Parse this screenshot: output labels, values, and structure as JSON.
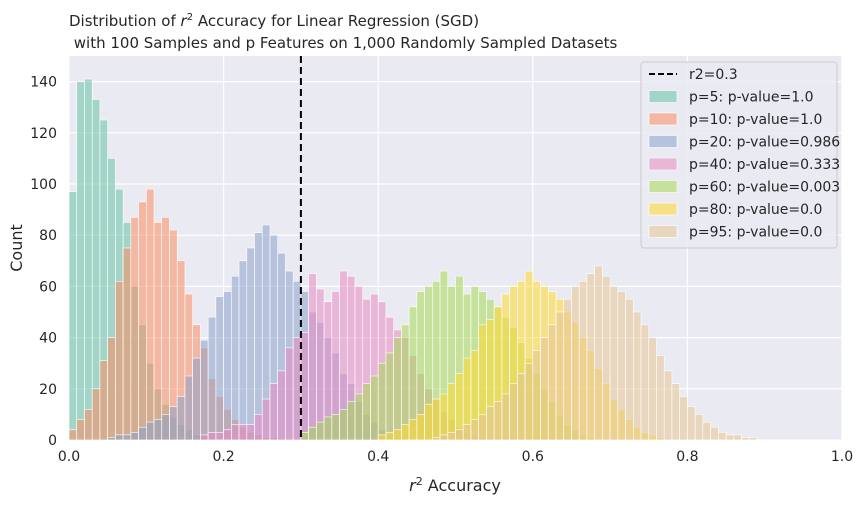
{
  "chart_data": {
    "type": "bar",
    "title_line1_prefix": "Distribution of ",
    "title_line1_suffix": " Accuracy for Linear Regression (SGD)",
    "title_line2": " with 100 Samples and p Features on 1,000 Randomly Sampled Datasets",
    "xlabel_suffix": " Accuracy",
    "ylabel": "Count",
    "xlim": [
      0,
      1.0
    ],
    "ylim": [
      0,
      150
    ],
    "xticks": [
      "0.0",
      "0.2",
      "0.4",
      "0.6",
      "0.8",
      "1.0"
    ],
    "xtick_values": [
      0,
      0.2,
      0.4,
      0.6,
      0.8,
      1.0
    ],
    "yticks": [
      "0",
      "20",
      "40",
      "60",
      "80",
      "100",
      "120",
      "140"
    ],
    "ytick_values": [
      0,
      20,
      40,
      60,
      80,
      100,
      120,
      140
    ],
    "grid": true,
    "legend_position": "top-right",
    "bin_width": 0.01,
    "vline": {
      "x": 0.3,
      "label": "r2=0.3",
      "color": "#000000"
    },
    "series": [
      {
        "name": "p=5: p-value=1.0",
        "color": "#66c2a5",
        "start": 0.0,
        "values": [
          97,
          140,
          141,
          133,
          125,
          110,
          98,
          85,
          60,
          45,
          30,
          20,
          14,
          9,
          6,
          4,
          2,
          1,
          1
        ]
      },
      {
        "name": "p=10: p-value=1.0",
        "color": "#fc8d62",
        "start": 0.0,
        "values": [
          4,
          8,
          12,
          20,
          31,
          40,
          62,
          75,
          87,
          93,
          98,
          85,
          87,
          82,
          70,
          57,
          45,
          36,
          24,
          17,
          12,
          8,
          5,
          3,
          2,
          1,
          1
        ]
      },
      {
        "name": "p=20: p-value=0.986",
        "color": "#8da0cb",
        "start": 0.05,
        "values": [
          1,
          2,
          2,
          3,
          5,
          7,
          8,
          10,
          13,
          17,
          25,
          32,
          39,
          48,
          56,
          58,
          64,
          70,
          75,
          81,
          84,
          80,
          73,
          66,
          62,
          58,
          50,
          46,
          40,
          34,
          26,
          22,
          15,
          10,
          7,
          4,
          2,
          1
        ]
      },
      {
        "name": "p=40: p-value=0.333",
        "color": "#e78ac3",
        "start": 0.17,
        "values": [
          2,
          3,
          3,
          4,
          6,
          6,
          6,
          10,
          16,
          22,
          27,
          36,
          40,
          42,
          65,
          59,
          54,
          58,
          66,
          64,
          60,
          55,
          57,
          54,
          48,
          43,
          40,
          33,
          26,
          20,
          16,
          11,
          8,
          5,
          3,
          2,
          1
        ]
      },
      {
        "name": "p=60: p-value=0.003",
        "color": "#a6d854",
        "start": 0.3,
        "values": [
          3,
          5,
          7,
          9,
          10,
          12,
          15,
          18,
          22,
          25,
          30,
          34,
          40,
          45,
          52,
          58,
          60,
          62,
          66,
          60,
          64,
          57,
          60,
          58,
          55,
          52,
          48,
          44,
          38,
          32,
          26,
          20,
          15,
          10,
          6,
          4,
          2,
          1
        ]
      },
      {
        "name": "p=80: p-value=0.0",
        "color": "#ffd92f",
        "start": 0.4,
        "values": [
          2,
          3,
          4,
          6,
          8,
          10,
          14,
          16,
          18,
          22,
          26,
          32,
          35,
          45,
          47,
          52,
          57,
          60,
          62,
          66,
          62,
          60,
          58,
          55,
          50,
          46,
          40,
          35,
          28,
          22,
          16,
          12,
          8,
          5,
          3,
          2,
          1
        ]
      },
      {
        "name": "p=95: p-value=0.0",
        "color": "#e5c494",
        "start": 0.47,
        "values": [
          1,
          2,
          3,
          4,
          6,
          8,
          10,
          13,
          15,
          18,
          22,
          26,
          30,
          35,
          40,
          45,
          50,
          55,
          60,
          62,
          65,
          68,
          64,
          60,
          58,
          55,
          50,
          45,
          40,
          33,
          27,
          22,
          17,
          13,
          10,
          7,
          5,
          3,
          2,
          2,
          1,
          1
        ]
      }
    ]
  }
}
